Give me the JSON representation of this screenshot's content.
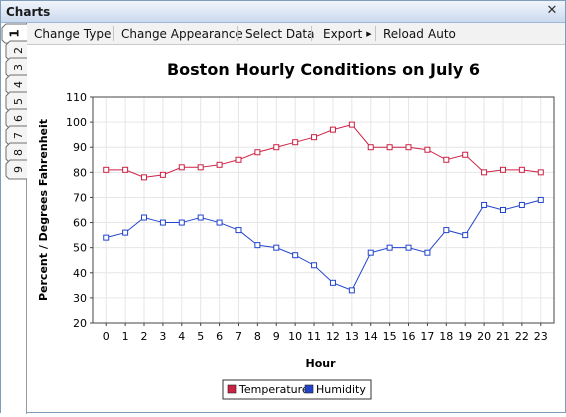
{
  "window": {
    "title": "Charts",
    "close_icon": "close-icon"
  },
  "toolbar": {
    "change_type": "Change Type",
    "change_appearance": "Change Appearance",
    "select_data": "Select Data",
    "export": "Export",
    "reload": "Reload",
    "auto": "Auto"
  },
  "tabs": [
    "1",
    "2",
    "3",
    "4",
    "5",
    "6",
    "7",
    "8",
    "9"
  ],
  "active_tab": "1",
  "colors": {
    "temperature": "#cc2244",
    "humidity": "#2244cc"
  },
  "chart_data": {
    "type": "line",
    "title": "Boston Hourly Conditions on July 6",
    "xlabel": "Hour",
    "ylabel": "Percent / Degrees Fahrenheit",
    "x": [
      0,
      1,
      2,
      3,
      4,
      5,
      6,
      7,
      8,
      9,
      10,
      11,
      12,
      13,
      14,
      15,
      16,
      17,
      18,
      19,
      20,
      21,
      22,
      23
    ],
    "ylim": [
      20,
      110
    ],
    "yticks": [
      20,
      30,
      40,
      50,
      60,
      70,
      80,
      90,
      100,
      110
    ],
    "grid": true,
    "legend": "bottom",
    "series": [
      {
        "name": "Temperature",
        "values": [
          81,
          81,
          78,
          79,
          82,
          82,
          83,
          85,
          88,
          90,
          92,
          94,
          97,
          99,
          90,
          90,
          90,
          89,
          85,
          87,
          80,
          81,
          81,
          80
        ]
      },
      {
        "name": "Humidity",
        "values": [
          54,
          56,
          62,
          60,
          60,
          62,
          60,
          57,
          51,
          50,
          47,
          43,
          36,
          33,
          48,
          50,
          50,
          48,
          57,
          55,
          67,
          65,
          67,
          69
        ]
      }
    ]
  }
}
